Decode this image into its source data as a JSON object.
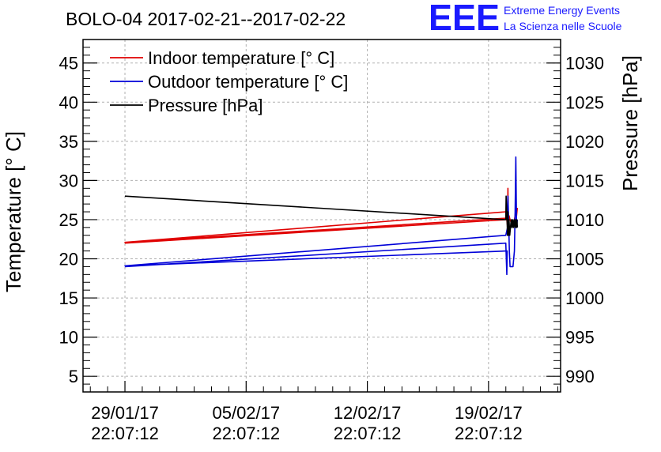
{
  "chart_data": {
    "type": "line",
    "title": "BOLO-04 2017-02-21--2017-02-22",
    "ylabel": "Temperature [° C]",
    "y2label": "Pressure [hPa]",
    "xlabel": "",
    "x_ticks": [
      {
        "date": "29/01/17",
        "time": "22:07:12"
      },
      {
        "date": "05/02/17",
        "time": "22:07:12"
      },
      {
        "date": "12/02/17",
        "time": "22:07:12"
      },
      {
        "date": "19/02/17",
        "time": "22:07:12"
      }
    ],
    "xlim": [
      "2017-01-27 12:00",
      "2017-02-24 02:00"
    ],
    "ylim": [
      3,
      48
    ],
    "y2lim": [
      988,
      1033
    ],
    "y_ticks": [
      5,
      10,
      15,
      20,
      25,
      30,
      35,
      40,
      45
    ],
    "y2_ticks": [
      990,
      995,
      1000,
      1005,
      1010,
      1015,
      1020,
      1025,
      1030
    ],
    "grid": true,
    "legend_position": "top-left",
    "series": [
      {
        "name": "Indoor temperature [° C]",
        "color": "#e00000",
        "axis": "left",
        "x": [
          "2017-01-29 22:07",
          "2017-02-20 22:00",
          "2017-02-21 00:00",
          "2017-01-29 22:07",
          "2017-02-20 22:00",
          "2017-02-21 00:30",
          "2017-02-21 01:00",
          "2017-02-21 01:30",
          "2017-02-21 02:30",
          "2017-02-21 04:00",
          "2017-02-21 06:00",
          "2017-02-21 08:00",
          "2017-02-21 10:00",
          "2017-02-21 11:00",
          "2017-02-21 12:00",
          "2017-02-21 13:00",
          "2017-02-21 14:00"
        ],
        "y": [
          22,
          25,
          25.2,
          22.1,
          26,
          24.2,
          29,
          24,
          25.5,
          25,
          24.5,
          24.5,
          25,
          25.5,
          26.5,
          25.5,
          26.5
        ]
      },
      {
        "name": "Outdoor temperature [° C]",
        "color": "#0000d8",
        "axis": "left",
        "x": [
          "2017-01-29 22:07",
          "2017-02-20 22:00",
          "2017-02-20 23:30",
          "2017-02-21 00:00",
          "2017-01-29 22:07",
          "2017-02-20 22:00",
          "2017-02-21 00:30",
          "2017-02-21 01:00",
          "2017-02-21 02:00",
          "2017-02-21 03:00",
          "2017-02-21 04:00",
          "2017-02-21 06:00",
          "2017-02-21 08:00",
          "2017-02-21 10:00",
          "2017-02-21 11:00",
          "2017-02-21 12:00",
          "2017-02-21 13:00",
          "2017-02-21 14:00"
        ],
        "y": [
          19,
          22,
          18,
          21,
          19.1,
          23,
          24,
          28,
          25,
          21,
          19,
          19,
          19,
          21,
          26,
          33,
          24,
          25
        ]
      },
      {
        "name": "Pressure [hPa]",
        "color": "#000000",
        "axis": "right",
        "x": [
          "2017-01-29 22:07",
          "2017-02-20 22:00",
          "2017-02-20 22:30",
          "2017-02-20 23:30",
          "2017-02-21 00:30",
          "2017-02-21 01:00",
          "2017-02-21 01:30",
          "2017-02-21 02:30",
          "2017-02-21 03:30",
          "2017-02-21 04:30",
          "2017-02-21 05:30",
          "2017-02-21 06:30",
          "2017-02-21 07:30",
          "2017-02-21 08:30",
          "2017-02-21 09:30",
          "2017-02-21 10:30",
          "2017-02-21 11:30",
          "2017-02-21 12:30",
          "2017-02-21 13:30",
          "2017-02-21 14:00"
        ],
        "y": [
          1013,
          1010,
          1013,
          1011,
          1008,
          1011,
          1008,
          1010,
          1008,
          1009,
          1010,
          1009,
          1010,
          1009,
          1010,
          1009,
          1010,
          1009,
          1010,
          1009
        ]
      }
    ]
  },
  "logo": {
    "mark": "EEE",
    "line1": "Extreme Energy Events",
    "line2": "La Scienza nelle Scuole",
    "color": "#1a1aff"
  }
}
